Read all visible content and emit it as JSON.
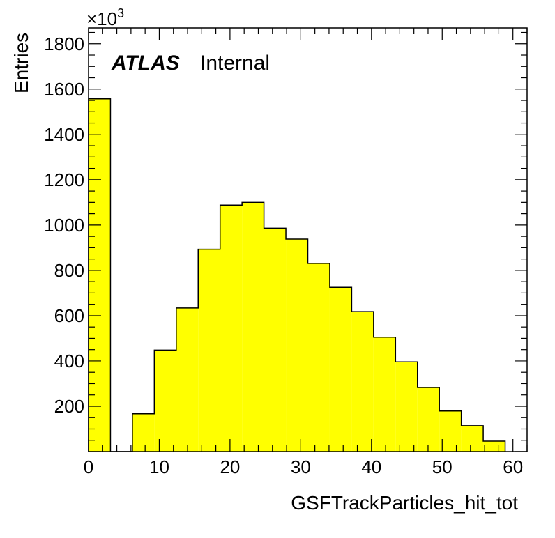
{
  "chart_data": {
    "type": "bar",
    "histogram": true,
    "xlabel": "GSFTrackParticles_hit_tot",
    "ylabel": "Entries",
    "y_multiplier": "×10",
    "y_multiplier_exponent": "3",
    "xlim": [
      0,
      62
    ],
    "ylim": [
      0,
      1870
    ],
    "x_ticks": [
      0,
      10,
      20,
      30,
      40,
      50,
      60
    ],
    "x_tick_labels": [
      "0",
      "10",
      "20",
      "30",
      "40",
      "50",
      "60"
    ],
    "y_ticks": [
      200,
      400,
      600,
      800,
      1000,
      1200,
      1400,
      1600,
      1800
    ],
    "y_tick_labels": [
      "200",
      "400",
      "600",
      "800",
      "1000",
      "1200",
      "1400",
      "1600",
      "1800"
    ],
    "bin_edges": [
      0,
      3.1,
      6.2,
      9.3,
      12.4,
      15.5,
      18.6,
      21.7,
      24.8,
      27.9,
      31.0,
      34.1,
      37.2,
      40.3,
      43.4,
      46.5,
      49.6,
      52.7,
      55.8,
      58.9
    ],
    "values": [
      1557,
      0,
      167,
      448,
      634,
      893,
      1088,
      1100,
      986,
      938,
      831,
      725,
      618,
      505,
      396,
      283,
      179,
      114,
      46
    ],
    "fill_color": "#ffff00",
    "line_color": "#000000",
    "grid": false
  },
  "label": {
    "experiment": "ATLAS",
    "status": "Internal"
  }
}
